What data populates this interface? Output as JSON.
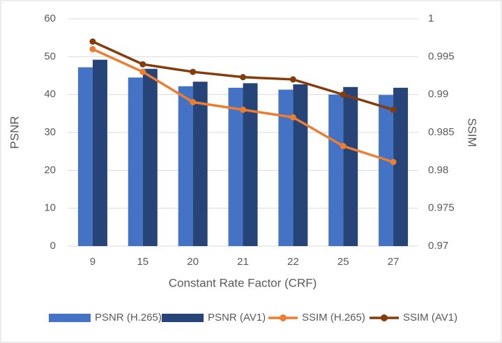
{
  "chart_data": {
    "type": "bar-line",
    "x_label": "Constant Rate Factor (CRF)",
    "y_label": "PSNR",
    "y2_label": "SSIM",
    "categories": [
      "9",
      "15",
      "20",
      "21",
      "22",
      "25",
      "27"
    ],
    "series": [
      {
        "name": "PSNR (H.265)",
        "type": "bar",
        "color": "#4472c4",
        "values": [
          47.2,
          44.5,
          42.2,
          41.8,
          41.3,
          40.0,
          39.9
        ]
      },
      {
        "name": "PSNR (AV1)",
        "type": "bar",
        "color": "#264478",
        "values": [
          49.2,
          46.8,
          43.4,
          43.0,
          42.7,
          42.0,
          41.8
        ]
      },
      {
        "name": "SSIM (H.265)",
        "type": "line",
        "axis": "y2",
        "color": "#ed7d31",
        "values": [
          0.996,
          0.993,
          0.989,
          0.988,
          0.987,
          0.9832,
          0.9811
        ]
      },
      {
        "name": "SSIM (AV1)",
        "type": "line",
        "axis": "y2",
        "color": "#843c0c",
        "values": [
          0.997,
          0.994,
          0.993,
          0.9923,
          0.992,
          0.99,
          0.988
        ]
      }
    ],
    "ylim": [
      0,
      60
    ],
    "yticks": [
      0,
      10,
      20,
      30,
      40,
      50,
      60
    ],
    "y2lim": [
      0.97,
      1
    ],
    "y2ticks": [
      0.97,
      0.975,
      0.98,
      0.985,
      0.99,
      0.995,
      1
    ],
    "grid": true,
    "legend": "bottom"
  }
}
